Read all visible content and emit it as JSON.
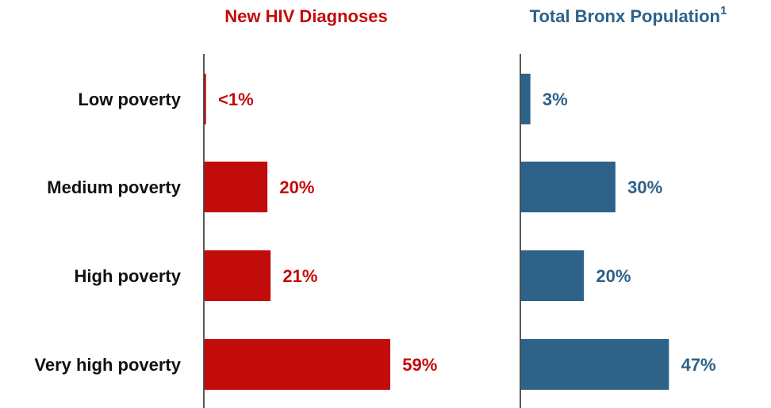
{
  "chart_data": [
    {
      "type": "bar",
      "orientation": "horizontal",
      "title": "New HIV Diagnoses",
      "color": "#c20b0b",
      "categories": [
        "Low poverty",
        "Medium poverty",
        "High poverty",
        "Very high poverty"
      ],
      "values": [
        0.5,
        20,
        21,
        59
      ],
      "value_labels": [
        "<1%",
        "20%",
        "21%",
        "59%"
      ]
    },
    {
      "type": "bar",
      "orientation": "horizontal",
      "title": "Total Bronx Population",
      "title_superscript": "1",
      "color": "#2e6289",
      "values": [
        3,
        30,
        20,
        47
      ],
      "value_labels": [
        "3%",
        "30%",
        "20%",
        "47%"
      ]
    }
  ]
}
